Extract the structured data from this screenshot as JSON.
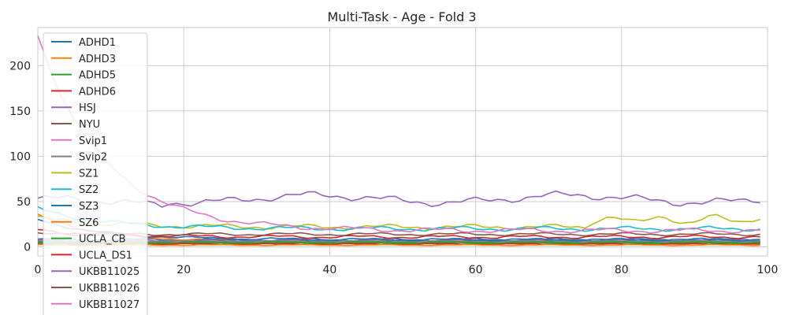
{
  "chart_data": {
    "type": "line",
    "title": "Multi-Task - Age - Fold 3",
    "xlabel": "",
    "ylabel": "",
    "xlim": [
      0,
      100
    ],
    "ylim": [
      -10,
      242
    ],
    "xticks": [
      0,
      20,
      40,
      60,
      80,
      100
    ],
    "yticks": [
      0,
      50,
      100,
      150,
      200
    ],
    "grid": true,
    "legend_position": "upper-left",
    "series": [
      {
        "name": "ADHD1",
        "color": "#1f77b4",
        "base": 8,
        "decay": 0,
        "amp": 1.0,
        "phase": 0.3
      },
      {
        "name": "ADHD3",
        "color": "#ff7f0e",
        "base": 5,
        "decay": 30,
        "amp": 0.8,
        "phase": 1.1
      },
      {
        "name": "ADHD5",
        "color": "#2ca02c",
        "base": 4,
        "decay": 0,
        "amp": 0.6,
        "phase": 2.0
      },
      {
        "name": "ADHD6",
        "color": "#d62728",
        "base": 3,
        "decay": 0,
        "amp": 0.5,
        "phase": 2.7
      },
      {
        "name": "HSJ",
        "color": "#9467bd",
        "base": 7,
        "decay": 0,
        "amp": 0.8,
        "phase": 0.9
      },
      {
        "name": "NYU",
        "color": "#8c564b",
        "base": 6,
        "decay": 0,
        "amp": 0.7,
        "phase": 1.6
      },
      {
        "name": "Svip1",
        "color": "#e377c2",
        "base": 6,
        "decay": 0,
        "amp": 0.7,
        "phase": 2.3
      },
      {
        "name": "Svip2",
        "color": "#7f7f7f",
        "base": 6,
        "decay": 0,
        "amp": 0.6,
        "phase": 3.0
      },
      {
        "name": "SZ1",
        "color": "#bcbd22",
        "base": 22,
        "decay": 10,
        "amp": 2.0,
        "phase": 0.5
      },
      {
        "name": "SZ2",
        "color": "#17becf",
        "base": 20,
        "decay": 22,
        "amp": 1.8,
        "phase": 1.3
      },
      {
        "name": "SZ3",
        "color": "#1f77b4",
        "base": 8,
        "decay": 22,
        "amp": 1.0,
        "phase": 2.1
      },
      {
        "name": "SZ6",
        "color": "#ff7f0e",
        "base": 2,
        "decay": 0,
        "amp": 0.4,
        "phase": 0.7
      },
      {
        "name": "UCLA_CB",
        "color": "#2ca02c",
        "base": 5,
        "decay": 0,
        "amp": 0.5,
        "phase": 1.9
      },
      {
        "name": "UCLA_DS1",
        "color": "#d62728",
        "base": 11,
        "decay": 8,
        "amp": 1.3,
        "phase": 2.5
      },
      {
        "name": "UKBB11025",
        "color": "#9467bd",
        "base": 53,
        "decay": 0,
        "amp": 3.0,
        "phase": 0.2
      },
      {
        "name": "UKBB11026",
        "color": "#8c564b",
        "base": 14,
        "decay": 0,
        "amp": 1.2,
        "phase": 1.4
      },
      {
        "name": "UKBB11027",
        "color": "#e377c2",
        "base": 18,
        "decay": 215,
        "amp": 2.0,
        "phase": 2.9
      }
    ]
  }
}
